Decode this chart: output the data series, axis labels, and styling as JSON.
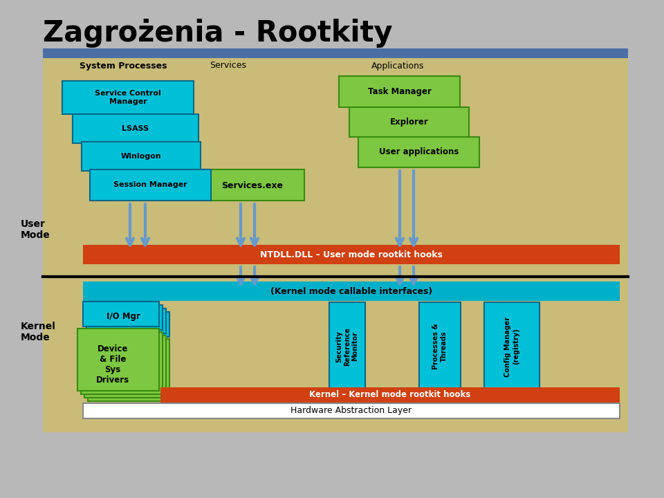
{
  "title": "Zagrożenia - Rootkity",
  "bg_color": "#b8b8b8",
  "slide_bg": "#c8bc78",
  "slide_border_color": "#4a6fa5",
  "title_fontsize": 30,
  "colors": {
    "cyan_box": "#00c0d8",
    "green_box": "#7dc742",
    "red_bar": "#d04010",
    "white_bar": "#ffffff",
    "dark_cyan": "#00afc8",
    "io_border": "#006888",
    "green_border": "#3a8a10"
  },
  "user_mode_label": "User\nMode",
  "kernel_mode_label": "Kernel\nMode",
  "ntdll_text": "NTDLL.DLL – User mode rootkit hooks",
  "kernel_callable_text": "(Kernel mode callable interfaces)",
  "kernel_hooks_text": "Kernel – Kernel mode rootkit hooks",
  "hal_text": "Hardware Abstraction Layer",
  "system_processes_label": "System Processes",
  "services_label": "Services",
  "applications_label": "Applications",
  "sp_boxes": [
    "Service Control\nManager",
    "LSASS",
    "Winlogon",
    "Session Manager"
  ],
  "app_boxes": [
    "Task Manager",
    "Explorer",
    "User applications"
  ],
  "services_box": "Services.exe",
  "io_mgr_label": "I/O Mgr",
  "device_label": "Device\n& File\nSys\nDrivers",
  "kernel_vert_boxes": [
    "Security\nReference\nMonitor",
    "Processes &\nThreads",
    "Config Manager\n(registry)"
  ]
}
